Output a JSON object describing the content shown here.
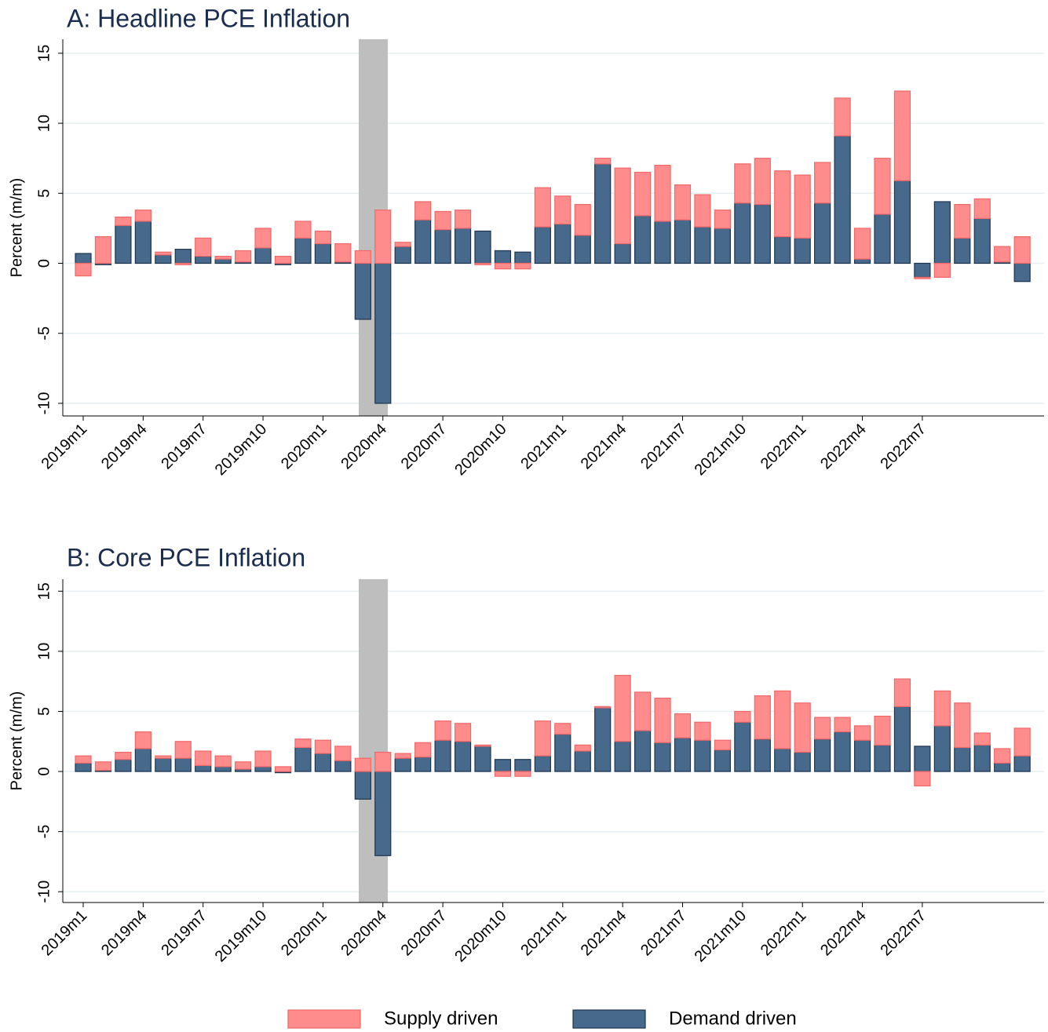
{
  "chart_data": [
    {
      "type": "bar",
      "stacked": true,
      "title": "A: Headline PCE Inflation",
      "y_label": "Percent (m/m)",
      "categories": [
        "2019m1",
        null,
        null,
        "2019m4",
        null,
        null,
        "2019m7",
        null,
        null,
        "2019m10",
        null,
        null,
        "2020m1",
        null,
        null,
        "2020m4",
        null,
        null,
        "2020m7",
        null,
        null,
        "2020m10",
        null,
        null,
        "2021m1",
        null,
        null,
        "2021m4",
        null,
        null,
        "2021m7",
        null,
        null,
        "2021m10",
        null,
        null,
        "2022m1",
        null,
        null,
        "2022m4",
        null,
        null,
        "2022m7",
        null,
        null,
        null,
        null,
        null
      ],
      "series": [
        {
          "values": [
            -0.9,
            1.9,
            0.6,
            0.8,
            0.2,
            -0.1,
            1.3,
            0.2,
            0.8,
            1.4,
            0.5,
            1.2,
            0.9,
            1.3,
            0.9,
            3.8,
            0.3,
            1.3,
            1.3,
            1.3,
            -0.1,
            -0.4,
            -0.4,
            2.8,
            2.0,
            2.2,
            0.4,
            5.4,
            3.1,
            4.0,
            2.5,
            2.3,
            1.3,
            2.8,
            3.3,
            4.7,
            4.5,
            2.9,
            2.7,
            2.2,
            4.0,
            6.4,
            -0.1,
            -1.0,
            2.4,
            1.4,
            1.1,
            1.9
          ]
        },
        {
          "values": [
            0.7,
            -0.1,
            2.7,
            3.0,
            0.6,
            1.0,
            0.5,
            0.3,
            0.1,
            1.1,
            -0.1,
            1.8,
            1.4,
            0.1,
            -4.0,
            -10.0,
            1.2,
            3.1,
            2.4,
            2.5,
            2.3,
            0.9,
            0.8,
            2.6,
            2.8,
            2.0,
            7.1,
            1.4,
            3.4,
            3.0,
            3.1,
            2.6,
            2.5,
            4.3,
            4.2,
            1.9,
            1.8,
            4.3,
            9.1,
            0.3,
            3.5,
            5.9,
            -1.0,
            4.4,
            1.8,
            3.2,
            0.1,
            -1.3
          ]
        }
      ],
      "ylim": [
        -10.9,
        16
      ],
      "yticks": [
        -10,
        -5,
        0,
        5,
        10,
        15
      ],
      "grid": true
    },
    {
      "type": "bar",
      "stacked": true,
      "title": "B: Core PCE Inflation",
      "y_label": "Percent (m/m)",
      "categories": [
        "2019m1",
        null,
        null,
        "2019m4",
        null,
        null,
        "2019m7",
        null,
        null,
        "2019m10",
        null,
        null,
        "2020m1",
        null,
        null,
        "2020m4",
        null,
        null,
        "2020m7",
        null,
        null,
        "2020m10",
        null,
        null,
        "2021m1",
        null,
        null,
        "2021m4",
        null,
        null,
        "2021m7",
        null,
        null,
        "2021m10",
        null,
        null,
        "2022m1",
        null,
        null,
        "2022m4",
        null,
        null,
        "2022m7",
        null,
        null,
        null,
        null,
        null
      ],
      "series": [
        {
          "values": [
            0.6,
            0.7,
            0.6,
            1.4,
            0.2,
            1.4,
            1.2,
            0.9,
            0.6,
            1.3,
            0.4,
            0.7,
            1.1,
            1.2,
            1.1,
            1.6,
            0.4,
            1.2,
            1.6,
            1.5,
            0.1,
            -0.4,
            -0.4,
            2.9,
            0.9,
            0.5,
            0.1,
            5.5,
            3.2,
            3.7,
            2.0,
            1.5,
            0.8,
            0.9,
            3.6,
            4.8,
            4.1,
            1.8,
            1.2,
            1.2,
            2.4,
            2.3,
            -1.2,
            2.9,
            3.7,
            1.0,
            1.2,
            2.3
          ]
        },
        {
          "values": [
            0.7,
            0.1,
            1.0,
            1.9,
            1.1,
            1.1,
            0.5,
            0.4,
            0.2,
            0.4,
            -0.1,
            2.0,
            1.5,
            0.9,
            -2.3,
            -7.0,
            1.1,
            1.2,
            2.6,
            2.5,
            2.1,
            1.0,
            1.0,
            1.3,
            3.1,
            1.7,
            5.3,
            2.5,
            3.4,
            2.4,
            2.8,
            2.6,
            1.8,
            4.1,
            2.7,
            1.9,
            1.6,
            2.7,
            3.3,
            2.6,
            2.2,
            5.4,
            2.1,
            3.8,
            2.0,
            2.2,
            0.7,
            1.3
          ]
        }
      ],
      "ylim": [
        -10.9,
        16
      ],
      "yticks": [
        -10,
        -5,
        0,
        5,
        10,
        15
      ],
      "grid": true
    }
  ],
  "legend": {
    "position": "bottom",
    "series": [
      {
        "name": "Supply driven",
        "color": "#ff8c8c",
        "edge": "#f06868"
      },
      {
        "name": "Demand driven",
        "color": "#47698c",
        "edge": "#1d344f"
      }
    ]
  }
}
